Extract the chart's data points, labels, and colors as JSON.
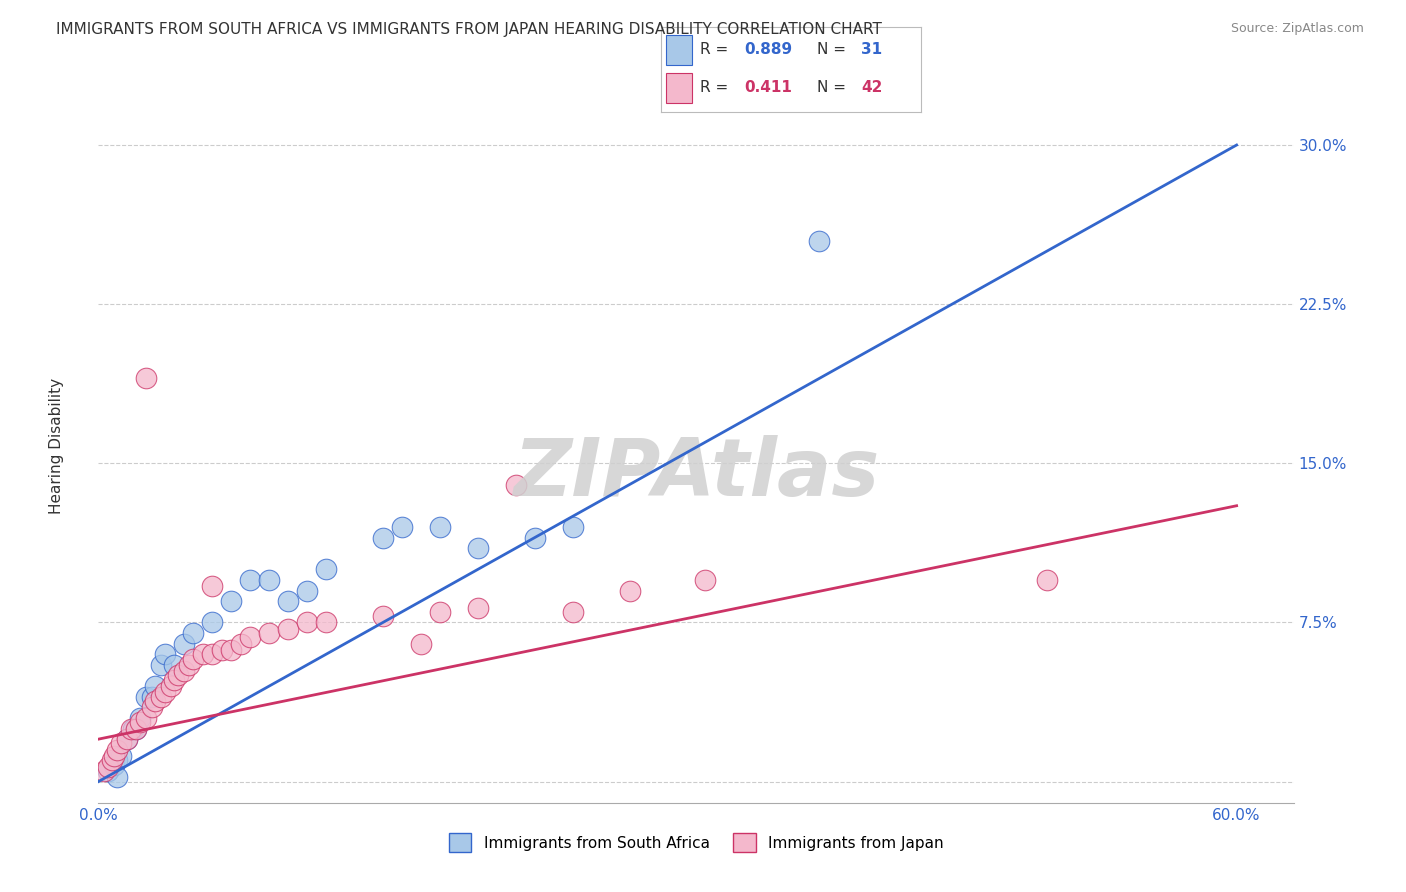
{
  "title": "IMMIGRANTS FROM SOUTH AFRICA VS IMMIGRANTS FROM JAPAN HEARING DISABILITY CORRELATION CHART",
  "source": "Source: ZipAtlas.com",
  "ylabel": "Hearing Disability",
  "xlim": [
    0.0,
    0.63
  ],
  "ylim": [
    -0.01,
    0.32
  ],
  "xticks": [
    0.0,
    0.1,
    0.2,
    0.3,
    0.4,
    0.5,
    0.6
  ],
  "xticklabels": [
    "0.0%",
    "",
    "",
    "",
    "",
    "",
    "60.0%"
  ],
  "ytick_positions": [
    0.0,
    0.075,
    0.15,
    0.225,
    0.3
  ],
  "ytick_labels": [
    "",
    "7.5%",
    "15.0%",
    "22.5%",
    "30.0%"
  ],
  "series1_color": "#a8c8e8",
  "series2_color": "#f4b8cc",
  "line1_color": "#3366cc",
  "line2_color": "#cc3366",
  "watermark": "ZIPAtlas",
  "watermark_color": "#d0d0d0",
  "background_color": "#ffffff",
  "grid_color": "#cccccc",
  "title_fontsize": 11,
  "axis_fontsize": 11,
  "tick_fontsize": 11,
  "series1_label": "Immigrants from South Africa",
  "series2_label": "Immigrants from Japan",
  "series1_R": 0.889,
  "series1_N": 31,
  "series2_R": 0.411,
  "series2_N": 42,
  "line1_x0": 0.0,
  "line1_y0": 0.0,
  "line1_x1": 0.6,
  "line1_y1": 0.3,
  "line2_x0": 0.0,
  "line2_y0": 0.02,
  "line2_x1": 0.6,
  "line2_y1": 0.13,
  "sa_x": [
    0.005,
    0.008,
    0.01,
    0.012,
    0.015,
    0.018,
    0.02,
    0.022,
    0.025,
    0.028,
    0.03,
    0.033,
    0.035,
    0.04,
    0.045,
    0.05,
    0.06,
    0.07,
    0.08,
    0.09,
    0.1,
    0.11,
    0.12,
    0.15,
    0.16,
    0.18,
    0.2,
    0.23,
    0.25,
    0.38,
    0.01
  ],
  "sa_y": [
    0.005,
    0.008,
    0.01,
    0.012,
    0.02,
    0.025,
    0.025,
    0.03,
    0.04,
    0.04,
    0.045,
    0.055,
    0.06,
    0.055,
    0.065,
    0.07,
    0.075,
    0.085,
    0.095,
    0.095,
    0.085,
    0.09,
    0.1,
    0.115,
    0.12,
    0.12,
    0.11,
    0.115,
    0.12,
    0.255,
    0.002
  ],
  "jp_x": [
    0.003,
    0.005,
    0.007,
    0.008,
    0.01,
    0.012,
    0.015,
    0.017,
    0.02,
    0.022,
    0.025,
    0.028,
    0.03,
    0.033,
    0.035,
    0.038,
    0.04,
    0.042,
    0.045,
    0.048,
    0.05,
    0.055,
    0.06,
    0.065,
    0.07,
    0.075,
    0.08,
    0.09,
    0.1,
    0.11,
    0.12,
    0.15,
    0.18,
    0.2,
    0.22,
    0.25,
    0.28,
    0.32,
    0.5,
    0.025,
    0.06,
    0.17
  ],
  "jp_y": [
    0.005,
    0.007,
    0.01,
    0.012,
    0.015,
    0.018,
    0.02,
    0.025,
    0.025,
    0.028,
    0.03,
    0.035,
    0.038,
    0.04,
    0.042,
    0.045,
    0.048,
    0.05,
    0.052,
    0.055,
    0.058,
    0.06,
    0.06,
    0.062,
    0.062,
    0.065,
    0.068,
    0.07,
    0.072,
    0.075,
    0.075,
    0.078,
    0.08,
    0.082,
    0.14,
    0.08,
    0.09,
    0.095,
    0.095,
    0.19,
    0.092,
    0.065
  ]
}
